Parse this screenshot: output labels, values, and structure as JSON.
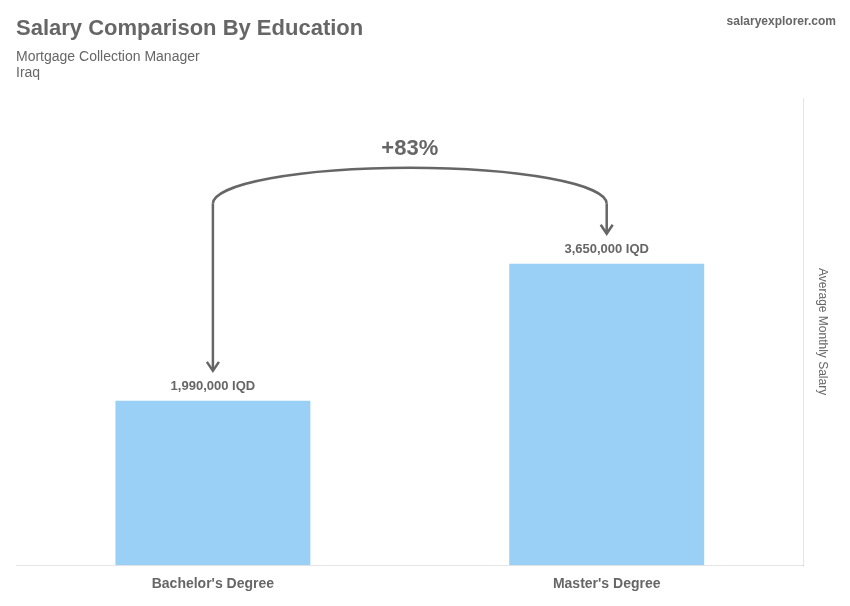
{
  "chart_data": {
    "type": "bar",
    "title": "Salary Comparison By Education",
    "subtitle": "Mortgage Collection Manager",
    "country": "Iraq",
    "source": "salaryexplorer.com",
    "annotation": "+83%",
    "ylabel": "Average Monthly Salary",
    "categories": [
      "Bachelor's Degree",
      "Master's Degree"
    ],
    "values": [
      1990000,
      3650000
    ],
    "value_labels": [
      "1,990,000 IQD",
      "3,650,000 IQD"
    ],
    "data_labels": true,
    "ylim": [
      0,
      5657500
    ],
    "tick_labels": "x",
    "grid": false
  }
}
